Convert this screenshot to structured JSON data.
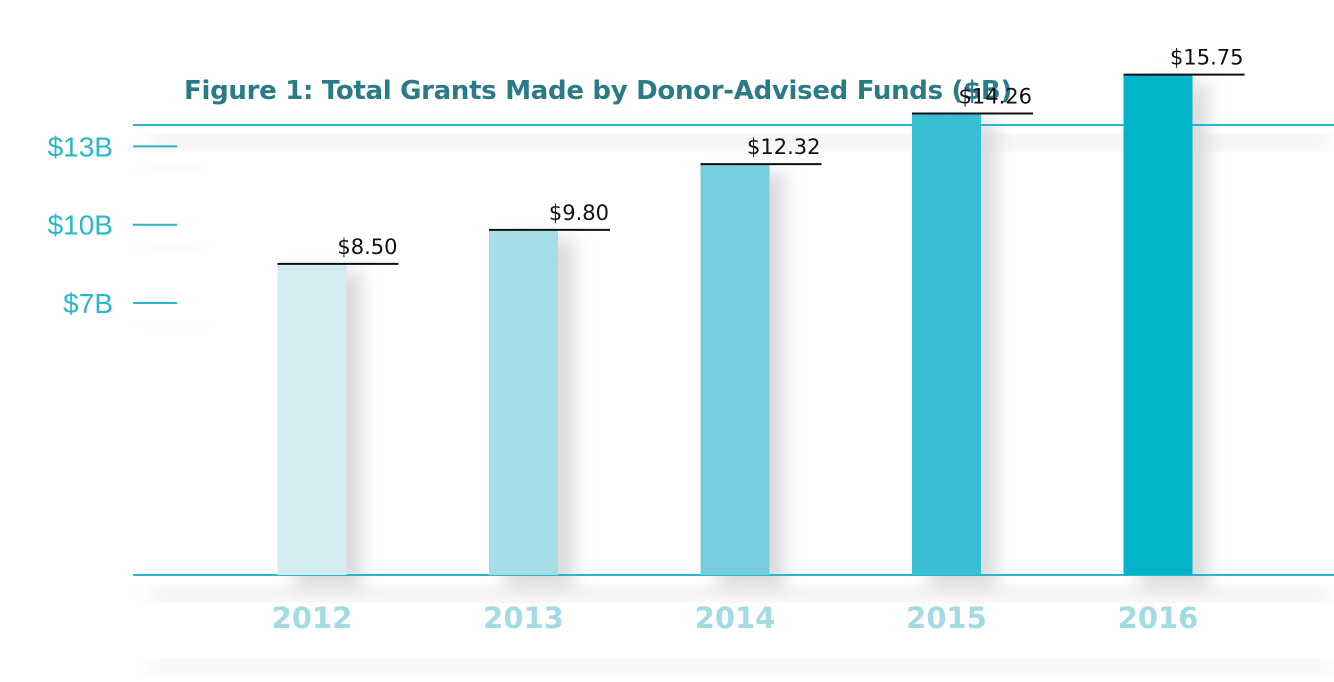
{
  "chart_data": {
    "type": "bar",
    "title": "Figure 1: Total Grants Made by Donor-Advised Funds ($B)",
    "categories": [
      "2012",
      "2013",
      "2014",
      "2015",
      "2016"
    ],
    "values": [
      8.5,
      9.8,
      12.32,
      14.26,
      15.75
    ],
    "value_labels": [
      "$8.50",
      "$9.80",
      "$12.32",
      "$14.26",
      "$15.75"
    ],
    "y_ticks": [
      {
        "value": 7,
        "label": "$7B"
      },
      {
        "value": 10,
        "label": "$10B"
      },
      {
        "value": 13,
        "label": "$13B"
      }
    ],
    "bar_colors": [
      "#d3ecf1",
      "#a5dce5",
      "#77cddd",
      "#38bfd3",
      "#02b4c9"
    ],
    "accent_color": "#2ab8c9",
    "title_color": "#2a7b86",
    "year_label_color": "#a3dbe3",
    "legend": "none",
    "grid": false
  }
}
